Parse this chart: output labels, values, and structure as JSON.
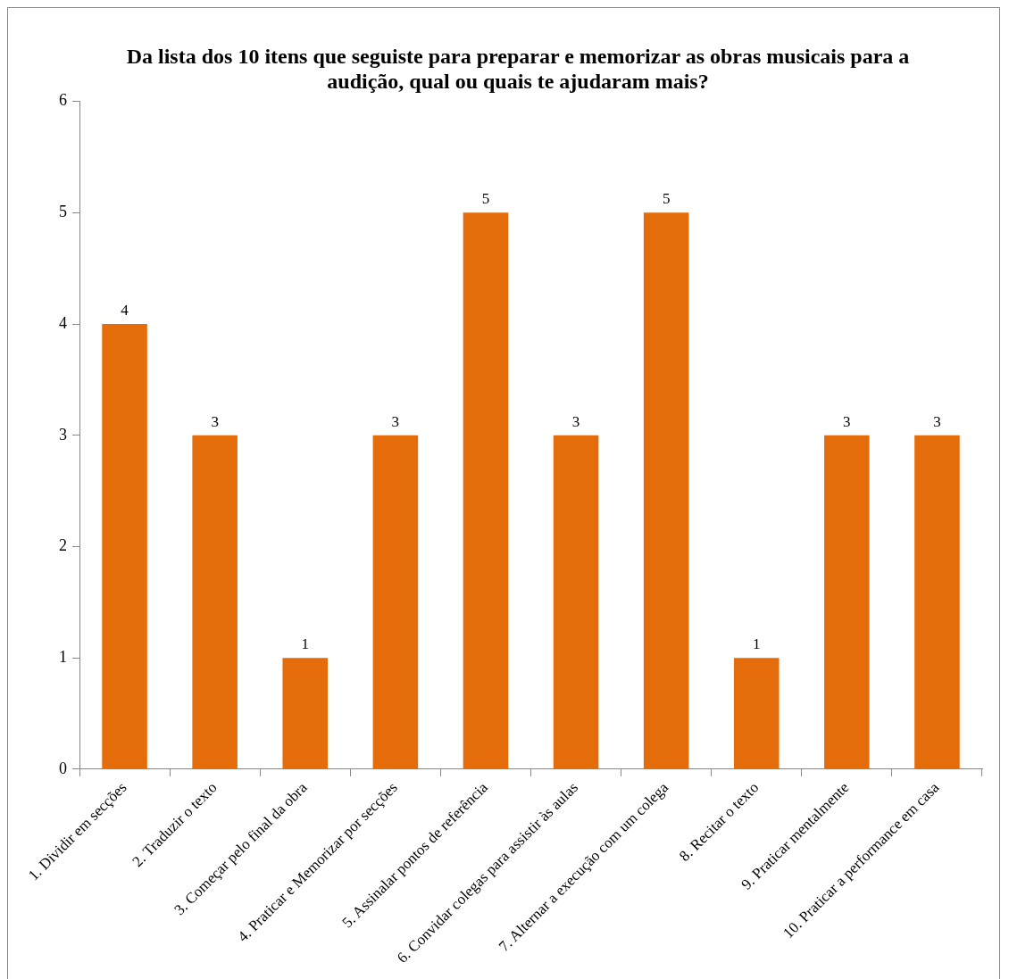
{
  "chart_data": {
    "type": "bar",
    "title": "Da lista dos 10 itens que seguiste para preparar e memorizar as obras musicais para a audição, qual ou quais te ajudaram mais?",
    "categories": [
      "1. Dividir em secções",
      "2. Traduzir o texto",
      "3. Começar pelo final da obra",
      "4. Praticar e Memorizar por secções",
      "5. Assinalar pontos de referência",
      "6. Convidar colegas para assistir às aulas",
      "7. Alternar a execução com um colega",
      "8. Recitar o texto",
      "9. Praticar mentalmente",
      "10. Praticar a performance em casa"
    ],
    "values": [
      4,
      3,
      1,
      3,
      5,
      3,
      5,
      1,
      3,
      3
    ],
    "color": "#e46c0a",
    "ylim": [
      0,
      6
    ],
    "yticks": [
      0,
      1,
      2,
      3,
      4,
      5,
      6
    ],
    "grid": false,
    "legend": false,
    "data_labels": true
  }
}
